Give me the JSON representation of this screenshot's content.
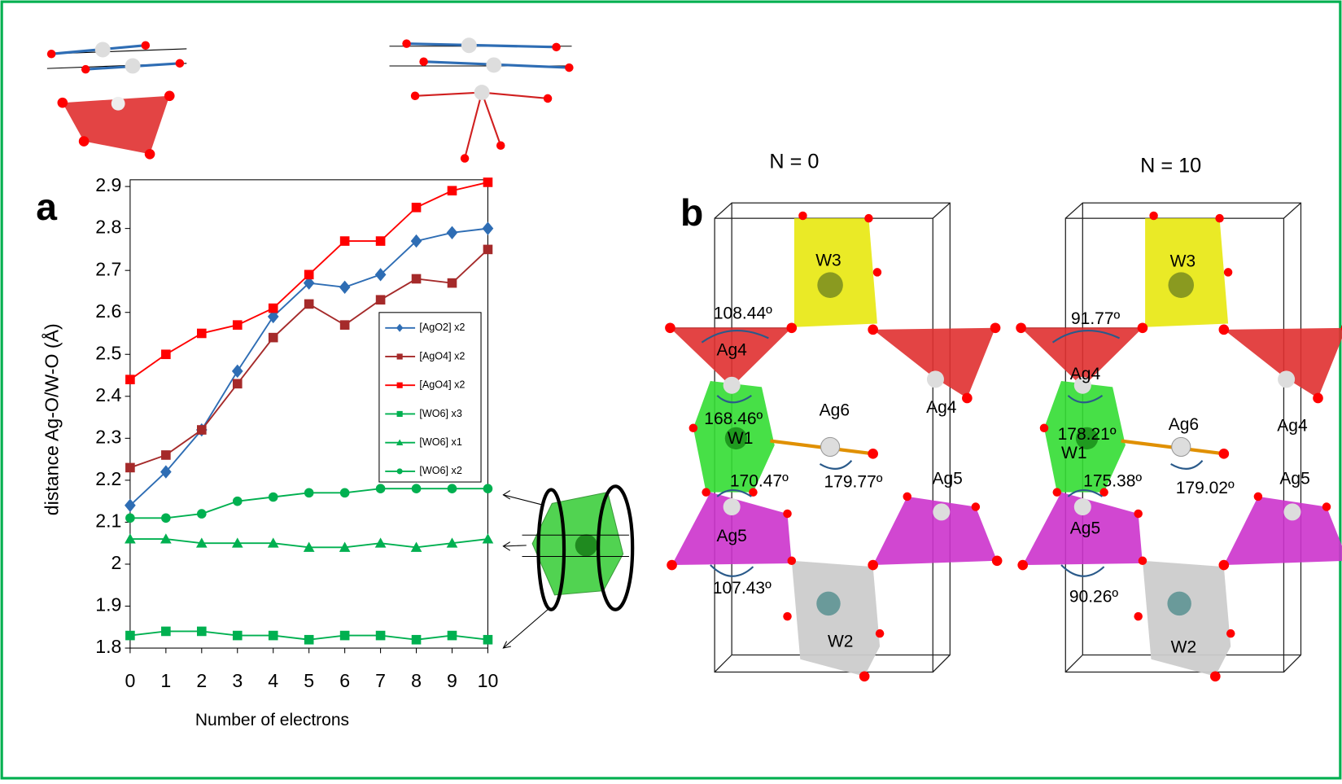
{
  "chart_data": {
    "type": "line",
    "panel_label": "a",
    "x_label": "Number of electrons",
    "y_label": "distance Ag-O/W-O (Å)",
    "x": [
      0,
      1,
      2,
      3,
      4,
      5,
      6,
      7,
      8,
      9,
      10
    ],
    "xlim": [
      0,
      10
    ],
    "xticks": [
      0,
      1,
      2,
      3,
      4,
      5,
      6,
      7,
      8,
      9,
      10
    ],
    "ylim": [
      1.8,
      2.916
    ],
    "yticks": [
      1.8,
      1.9,
      2,
      2.1,
      2.2,
      2.3,
      2.4,
      2.5,
      2.6,
      2.7,
      2.8,
      2.9
    ],
    "series": [
      {
        "name": "[AgO2]  x2",
        "color": "#2e6db4",
        "marker": "diamond",
        "values": [
          2.14,
          2.22,
          2.32,
          2.46,
          2.59,
          2.67,
          2.66,
          2.69,
          2.77,
          2.79,
          2.8
        ]
      },
      {
        "name": "[AgO4]  x2",
        "color": "#a52a2a",
        "marker": "square",
        "values": [
          2.23,
          2.26,
          2.32,
          2.43,
          2.54,
          2.62,
          2.57,
          2.63,
          2.68,
          2.67,
          2.75
        ]
      },
      {
        "name": "[AgO4]  x2",
        "color": "#ff0000",
        "marker": "square",
        "values": [
          2.44,
          2.5,
          2.55,
          2.57,
          2.61,
          2.69,
          2.77,
          2.77,
          2.85,
          2.89,
          2.91
        ]
      },
      {
        "name": "[WO6]  x3",
        "color": "#00b050",
        "marker": "square",
        "values": [
          1.83,
          1.84,
          1.84,
          1.83,
          1.83,
          1.82,
          1.83,
          1.83,
          1.82,
          1.83,
          1.82
        ]
      },
      {
        "name": "[WO6]  x1",
        "color": "#00b050",
        "marker": "triangle",
        "values": [
          2.06,
          2.06,
          2.05,
          2.05,
          2.05,
          2.04,
          2.04,
          2.05,
          2.04,
          2.05,
          2.06
        ]
      },
      {
        "name": "[WO6]  x2",
        "color": "#00b050",
        "marker": "circle",
        "values": [
          2.11,
          2.11,
          2.12,
          2.15,
          2.16,
          2.17,
          2.17,
          2.18,
          2.18,
          2.18,
          2.18
        ]
      }
    ]
  },
  "panel_b": {
    "label": "b",
    "left": {
      "title": "N = 0",
      "labels": [
        "W3",
        "108.44º",
        "Ag4",
        "168.46º",
        "Ag6",
        "W1",
        "170.47º",
        "179.77º",
        "Ag4",
        "Ag5",
        "Ag5",
        "107.43º",
        "W2"
      ]
    },
    "right": {
      "title": "N = 10",
      "labels": [
        "W3",
        "91.77º",
        "Ag4",
        "178.21º",
        "W1",
        "Ag6",
        "175.38º",
        "179.02º",
        "Ag4",
        "Ag5",
        "Ag5",
        "90.26º",
        "W2"
      ]
    }
  }
}
